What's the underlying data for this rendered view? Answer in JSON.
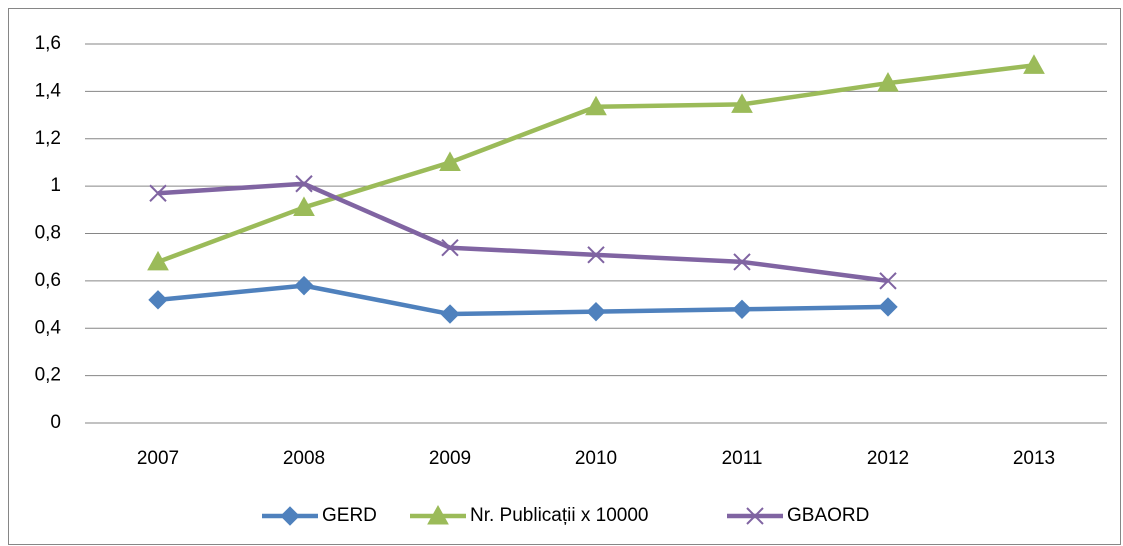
{
  "chart_data": {
    "type": "line",
    "categories": [
      "2007",
      "2008",
      "2009",
      "2010",
      "2011",
      "2012",
      "2013"
    ],
    "series": [
      {
        "name": "GERD",
        "color": "#4f81bd",
        "marker": "diamond",
        "values": [
          0.52,
          0.58,
          0.46,
          0.47,
          0.48,
          0.49,
          null
        ]
      },
      {
        "name": "Nr. Publicații x 10000",
        "color": "#9bbb59",
        "marker": "triangle",
        "values": [
          0.68,
          0.91,
          1.1,
          1.335,
          1.345,
          1.435,
          1.51
        ]
      },
      {
        "name": "GBAORD",
        "color": "#8064a2",
        "marker": "x",
        "values": [
          0.97,
          1.01,
          0.74,
          0.71,
          0.68,
          0.6,
          null
        ]
      }
    ],
    "ylim": [
      0,
      1.6
    ],
    "yticks": [
      0,
      {
        "value": 0.2,
        "label": "0,2"
      },
      {
        "value": 0.4,
        "label": "0,4"
      },
      {
        "value": 0.6,
        "label": "0,6"
      },
      {
        "value": 0.8,
        "label": "0,8"
      },
      1,
      {
        "value": 1.2,
        "label": "1,2"
      },
      {
        "value": 1.4,
        "label": "1,4"
      },
      {
        "value": 1.6,
        "label": "1,6"
      }
    ],
    "grid": true,
    "legend": "bottom"
  }
}
